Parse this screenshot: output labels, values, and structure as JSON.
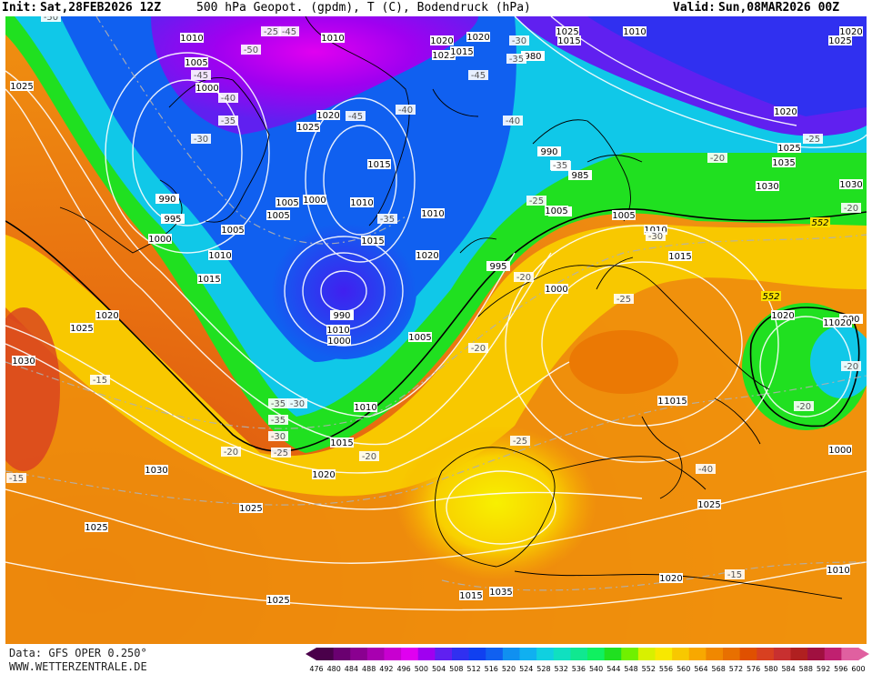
{
  "header": {
    "init_label": "Init:",
    "init_value": "Sat,28FEB2026 12Z",
    "title": "500 hPa Geopot. (gpdm), T (C), Bodendruck (hPa)",
    "valid_label": "Valid:",
    "valid_value": "Sun,08MAR2026 00Z"
  },
  "footer": {
    "data_source": "Data: GFS OPER 0.250°",
    "website": "WWW.WETTERZENTRALE.DE"
  },
  "legend": {
    "ticks": [
      "476",
      "480",
      "484",
      "488",
      "492",
      "496",
      "500",
      "504",
      "508",
      "512",
      "516",
      "520",
      "524",
      "528",
      "532",
      "536",
      "540",
      "544",
      "548",
      "552",
      "556",
      "560",
      "564",
      "568",
      "572",
      "576",
      "580",
      "584",
      "588",
      "592",
      "596",
      "600"
    ],
    "colors": [
      "#4a004a",
      "#6a0070",
      "#8a0090",
      "#a800b0",
      "#c800d0",
      "#e000f0",
      "#a000f0",
      "#6020f0",
      "#3030f0",
      "#1040f0",
      "#1060f0",
      "#1090f0",
      "#10b0f0",
      "#10d0e0",
      "#10e0c0",
      "#10e890",
      "#10f060",
      "#20e020",
      "#70f000",
      "#d8f000",
      "#f8e800",
      "#f8c800",
      "#f8a800",
      "#f08800",
      "#e87000",
      "#e05000",
      "#d84020",
      "#c83030",
      "#b02020",
      "#a01040",
      "#c02070",
      "#e060a0"
    ]
  },
  "map": {
    "isobar_labels": [
      "1010",
      "1010",
      "1005",
      "1000",
      "1025",
      "990",
      "995",
      "1000",
      "1005",
      "1010",
      "1015",
      "1020",
      "1025",
      "1030",
      "1030",
      "1025",
      "1025",
      "1025",
      "1020",
      "1010",
      "1015",
      "1020",
      "1025",
      "1015",
      "1005",
      "1000",
      "1005",
      "1010",
      "1015",
      "1020",
      "990",
      "1000",
      "1010",
      "1005",
      "990",
      "985",
      "990",
      "980",
      "995",
      "1000",
      "1005",
      "1010",
      "1015",
      "1020",
      "1000",
      "990",
      "1025",
      "1020",
      "1020",
      "1025",
      "1015",
      "1005",
      "1010",
      "1015",
      "1020",
      "1025",
      "1030",
      "1035",
      "1030",
      "1020",
      "1035",
      "1015",
      "1025",
      "1020",
      "1010",
      "1020",
      "1025",
      "1020",
      "1010",
      "1015",
      "1025"
    ],
    "temp_labels": [
      "-50",
      "-45",
      "-45",
      "-40",
      "-35",
      "-30",
      "-25",
      "-30",
      "-35",
      "-40",
      "-45",
      "-50",
      "-45",
      "-40",
      "-35",
      "-30",
      "-25",
      "-35",
      "-30",
      "-25",
      "-20",
      "-20",
      "-20",
      "-25",
      "-20",
      "-20",
      "-15",
      "-15",
      "-20",
      "-25",
      "-20",
      "-35",
      "-30",
      "-20",
      "-25",
      "-30",
      "-35",
      "-40",
      "-15"
    ],
    "height_labels": [
      "552",
      "552"
    ]
  }
}
